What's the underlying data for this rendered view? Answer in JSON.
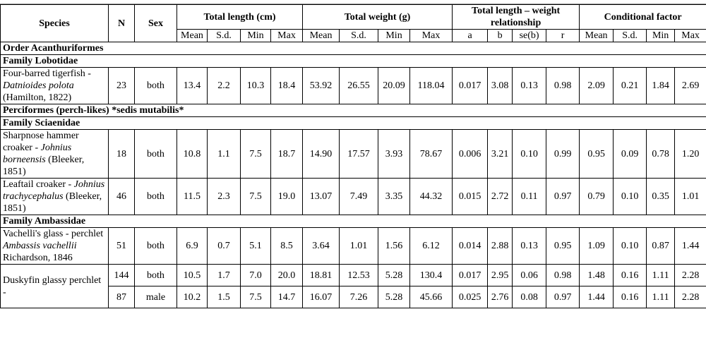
{
  "columns": {
    "species": "Species",
    "n": "N",
    "sex": "Sex",
    "groups": [
      {
        "title": "Total length (cm)",
        "subs": [
          "Mean",
          "S.d.",
          "Min",
          "Max"
        ]
      },
      {
        "title": "Total weight (g)",
        "subs": [
          "Mean",
          "S.d.",
          "Min",
          "Max"
        ]
      },
      {
        "title": "Total length – weight relationship",
        "subs": [
          "a",
          "b",
          "se(b)",
          "r"
        ]
      },
      {
        "title": "Conditional factor",
        "subs": [
          "Mean",
          "S.d.",
          "Min",
          "Max"
        ]
      }
    ]
  },
  "rows": [
    {
      "section": "Order Acanthuriformes"
    },
    {
      "section": "Family Lobotidae"
    },
    {
      "species": [
        "Four-barred tigerfish -",
        "Datnioides polota",
        "(Hamilton, 1822)"
      ],
      "entries": [
        {
          "n": "23",
          "sex": "both",
          "values": [
            "13.4",
            "2.2",
            "10.3",
            "18.4",
            "53.92",
            "26.55",
            "20.09",
            "118.04",
            "0.017",
            "3.08",
            "0.13",
            "0.98",
            "2.09",
            "0.21",
            "1.84",
            "2.69"
          ]
        }
      ]
    },
    {
      "section": "Perciformes (perch-likes) *sedis mutabilis*"
    },
    {
      "section": "Family Sciaenidae"
    },
    {
      "species": [
        "Sharpnose hammer croaker -",
        "Johnius borneensis",
        "(Bleeker, 1851)"
      ],
      "entries": [
        {
          "n": "18",
          "sex": "both",
          "values": [
            "10.8",
            "1.1",
            "7.5",
            "18.7",
            "14.90",
            "17.57",
            "3.93",
            "78.67",
            "0.006",
            "3.21",
            "0.10",
            "0.99",
            "0.95",
            "0.09",
            "0.78",
            "1.20"
          ]
        }
      ]
    },
    {
      "species": [
        "Leaftail croaker -",
        "Johnius trachycephalus",
        "(Bleeker, 1851)"
      ],
      "entries": [
        {
          "n": "46",
          "sex": "both",
          "values": [
            "11.5",
            "2.3",
            "7.5",
            "19.0",
            "13.07",
            "7.49",
            "3.35",
            "44.32",
            "0.015",
            "2.72",
            "0.11",
            "0.97",
            "0.79",
            "0.10",
            "0.35",
            "1.01"
          ]
        }
      ]
    },
    {
      "section": "Family Ambassidae"
    },
    {
      "species": [
        "Vachelli's glass - perchlet",
        "Ambassis vachellii",
        "Richardson, 1846"
      ],
      "entries": [
        {
          "n": "51",
          "sex": "both",
          "values": [
            "6.9",
            "0.7",
            "5.1",
            "8.5",
            "3.64",
            "1.01",
            "1.56",
            "6.12",
            "0.014",
            "2.88",
            "0.13",
            "0.95",
            "1.09",
            "0.10",
            "0.87",
            "1.44"
          ]
        }
      ]
    },
    {
      "species": [
        "Duskyfin glassy perchlet -"
      ],
      "entries": [
        {
          "n": "144",
          "sex": "both",
          "values": [
            "10.5",
            "1.7",
            "7.0",
            "20.0",
            "18.81",
            "12.53",
            "5.28",
            "130.4",
            "0.017",
            "2.95",
            "0.06",
            "0.98",
            "1.48",
            "0.16",
            "1.11",
            "2.28"
          ]
        },
        {
          "n": "87",
          "sex": "male",
          "values": [
            "10.2",
            "1.5",
            "7.5",
            "14.7",
            "16.07",
            "7.26",
            "5.28",
            "45.66",
            "0.025",
            "2.76",
            "0.08",
            "0.97",
            "1.44",
            "0.16",
            "1.11",
            "2.28"
          ]
        }
      ]
    }
  ]
}
